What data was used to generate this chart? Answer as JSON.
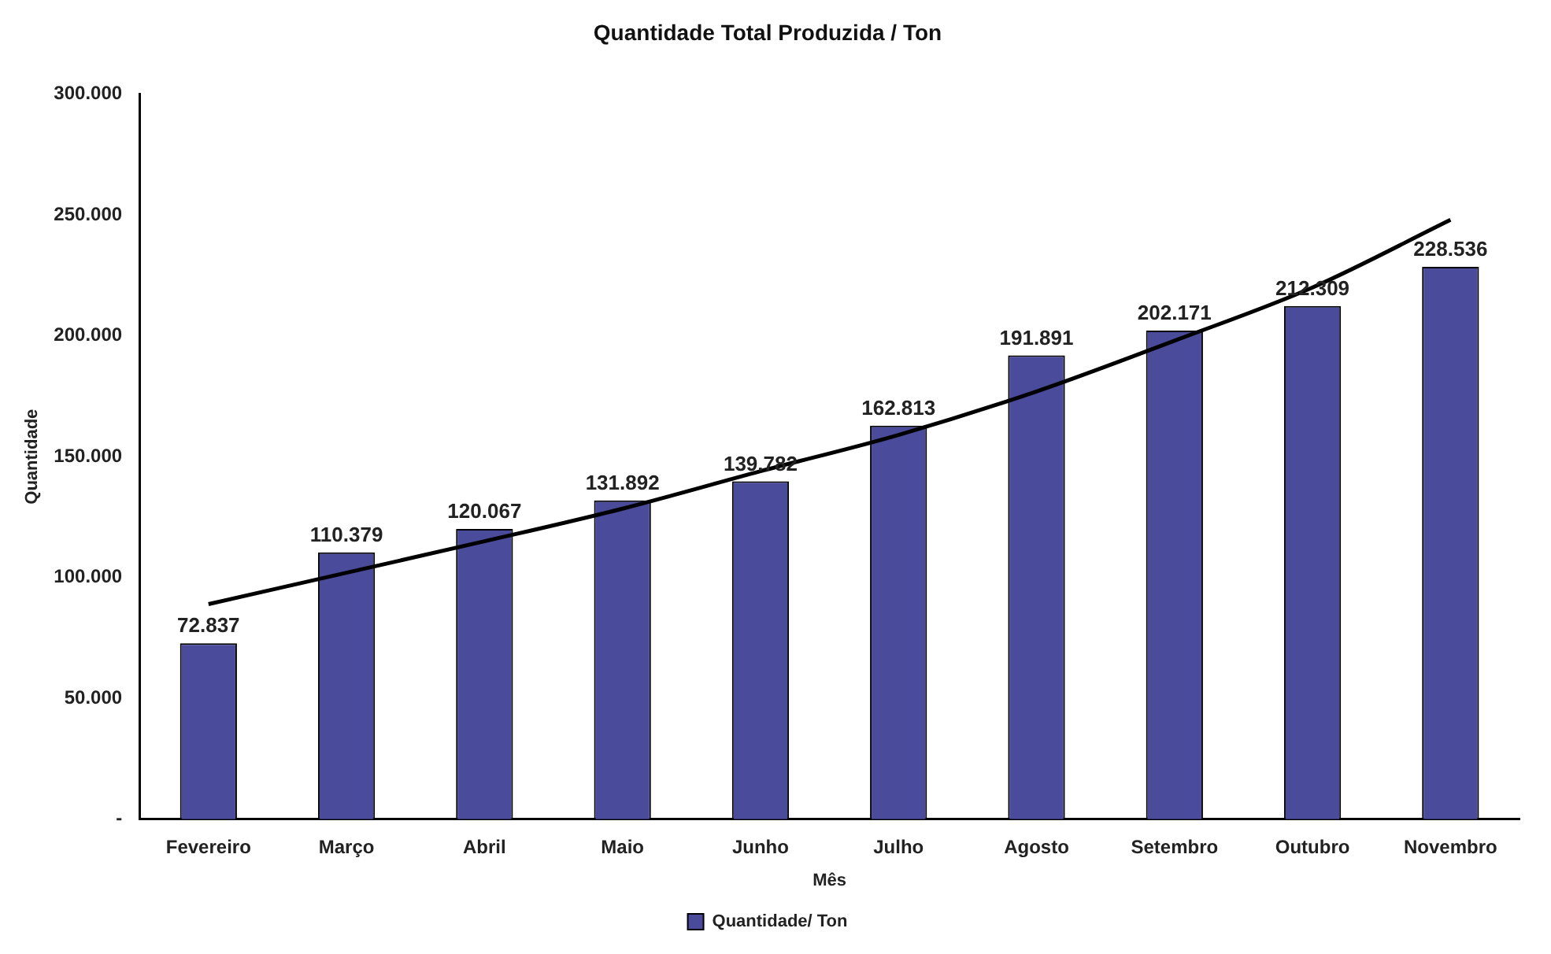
{
  "chart_data": {
    "type": "bar",
    "title": "Quantidade Total Produzida / Ton",
    "xlabel": "Mês",
    "ylabel": "Quantidade",
    "categories": [
      "Fevereiro",
      "Março",
      "Abril",
      "Maio",
      "Junho",
      "Julho",
      "Agosto",
      "Setembro",
      "Outubro",
      "Novembro"
    ],
    "series": [
      {
        "name": "Quantidade/ Ton",
        "color": "#4b4b9b",
        "values": [
          72837,
          110379,
          120067,
          131892,
          139782,
          162813,
          191891,
          202171,
          212309,
          228536
        ],
        "value_labels": [
          "72.837",
          "110.379",
          "120.067",
          "131.892",
          "139.782",
          "162.813",
          "191.891",
          "202.171",
          "212.309",
          "228.536"
        ]
      },
      {
        "type": "line",
        "color": "#000000",
        "values": [
          89000,
          102000,
          115000,
          128500,
          144000,
          159000,
          177000,
          198000,
          220000,
          248000
        ]
      }
    ],
    "ylim": [
      0,
      300000
    ],
    "yticks": [
      {
        "value": 0,
        "label": "-"
      },
      {
        "value": 50000,
        "label": "50.000"
      },
      {
        "value": 100000,
        "label": "100.000"
      },
      {
        "value": 150000,
        "label": "150.000"
      },
      {
        "value": 200000,
        "label": "200.000"
      },
      {
        "value": 250000,
        "label": "250.000"
      },
      {
        "value": 300000,
        "label": "300.000"
      }
    ],
    "grid": false,
    "legend": "bottom",
    "marker": "none",
    "line_style": "solid"
  }
}
